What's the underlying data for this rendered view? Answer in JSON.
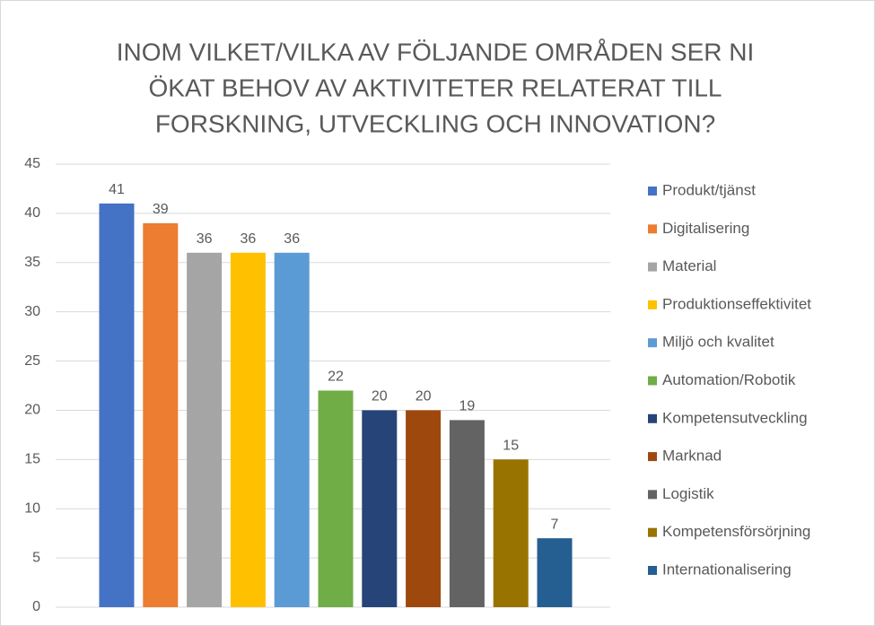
{
  "chart_data": {
    "type": "bar",
    "title": [
      "INOM VILKET/VILKA AV FÖLJANDE OMRÅDEN SER NI",
      "ÖKAT BEHOV AV AKTIVITETER RELATERAT TILL",
      "FORSKNING, UTVECKLING OCH INNOVATION?"
    ],
    "series": [
      {
        "name": "Produkt/tjänst",
        "color": "#4472c4",
        "values": [
          41
        ]
      },
      {
        "name": "Digitalisering",
        "color": "#ed7d31",
        "values": [
          39
        ]
      },
      {
        "name": "Material",
        "color": "#a5a5a5",
        "values": [
          36
        ]
      },
      {
        "name": "Produktionseffektivitet",
        "color": "#ffc000",
        "values": [
          36
        ]
      },
      {
        "name": "Miljö och kvalitet",
        "color": "#5b9bd5",
        "values": [
          36
        ]
      },
      {
        "name": "Automation/Robotik",
        "color": "#70ad47",
        "values": [
          22
        ]
      },
      {
        "name": "Kompetensutveckling",
        "color": "#264478",
        "values": [
          20
        ]
      },
      {
        "name": "Marknad",
        "color": "#9e480e",
        "values": [
          20
        ]
      },
      {
        "name": "Logistik",
        "color": "#636363",
        "values": [
          19
        ]
      },
      {
        "name": "Kompetensförsörjning",
        "color": "#997300",
        "values": [
          15
        ]
      },
      {
        "name": "Internationalisering",
        "color": "#255e91",
        "values": [
          7
        ]
      }
    ],
    "ylim": [
      0,
      45
    ],
    "yticks": [
      0,
      5,
      10,
      15,
      20,
      25,
      30,
      35,
      40,
      45
    ],
    "grid": true,
    "legend": "right"
  }
}
